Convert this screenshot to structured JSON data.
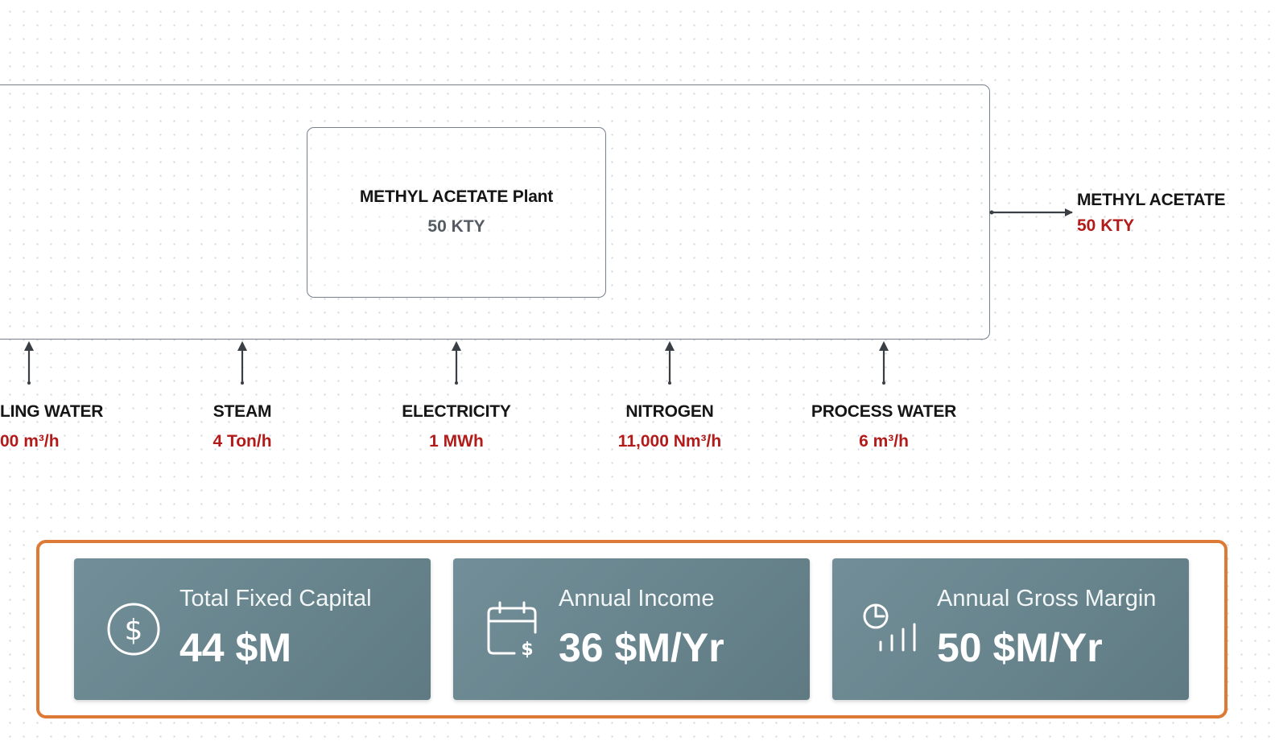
{
  "plant": {
    "name": "METHYL ACETATE Plant",
    "capacity": "50 KTY"
  },
  "product": {
    "name": "METHYL ACETATE",
    "value": "50 KTY"
  },
  "utilities": [
    {
      "name": "LING WATER",
      "value": "00 m³/h"
    },
    {
      "name": "STEAM",
      "value": "4 Ton/h"
    },
    {
      "name": "ELECTRICITY",
      "value": "1 MWh"
    },
    {
      "name": "NITROGEN",
      "value": "11,000 Nm³/h"
    },
    {
      "name": "PROCESS WATER",
      "value": "6 m³/h"
    }
  ],
  "kpis": [
    {
      "label": "Total Fixed Capital",
      "value": "44 $M",
      "icon": "dollar-circle-icon"
    },
    {
      "label": "Annual Income",
      "value": "36 $M/Yr",
      "icon": "calendar-dollar-icon"
    },
    {
      "label": "Annual Gross Margin",
      "value": "50 $M/Yr",
      "icon": "pie-chart-bars-icon"
    }
  ],
  "colors": {
    "accent_border": "#dd7a36",
    "value_red": "#b31b1b",
    "card_bg": "#6a858e",
    "box_border": "#76808f"
  }
}
